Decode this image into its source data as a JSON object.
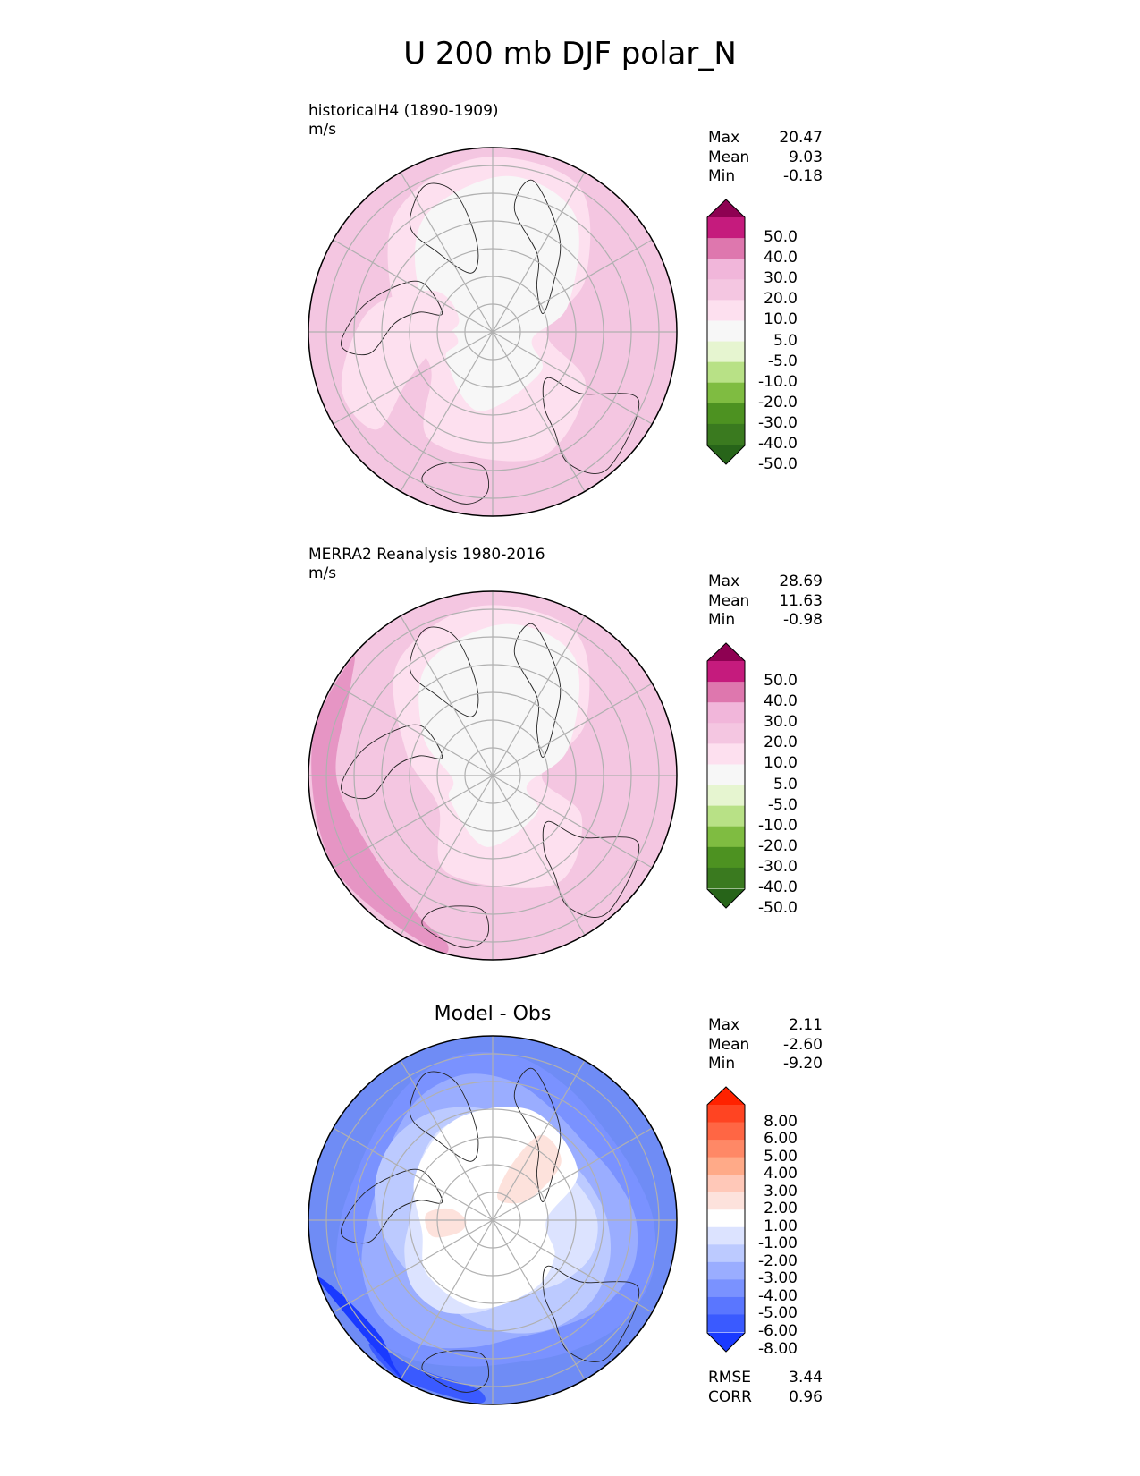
{
  "title": "U 200 mb DJF polar_N",
  "chart_data": [
    {
      "type": "heatmap",
      "name": "model",
      "title": "historicalH4 (1890-1909)",
      "units": "m/s",
      "projection": "north polar stereographic",
      "stats": [
        {
          "label": "Max",
          "value": "20.47"
        },
        {
          "label": "Mean",
          "value": "9.03"
        },
        {
          "label": "Min",
          "value": "-0.18"
        }
      ],
      "colorbar": {
        "extend": "both",
        "ticks": [
          "50.0",
          "40.0",
          "30.0",
          "20.0",
          "10.0",
          "5.0",
          "-5.0",
          "-10.0",
          "-20.0",
          "-30.0",
          "-40.0",
          "-50.0"
        ],
        "colors": [
          "#8e0152",
          "#c51b7d",
          "#de77ae",
          "#f1b6da",
          "#f4c6e1",
          "#fde0ef",
          "#f7f7f7",
          "#e6f5d0",
          "#b8e186",
          "#7fbc41",
          "#4d9221",
          "#3a7a1f",
          "#276419"
        ]
      },
      "background": "#f4c6e1"
    },
    {
      "type": "heatmap",
      "name": "obs",
      "title": "MERRA2 Reanalysis 1980-2016",
      "units": "m/s",
      "projection": "north polar stereographic",
      "stats": [
        {
          "label": "Max",
          "value": "28.69"
        },
        {
          "label": "Mean",
          "value": "11.63"
        },
        {
          "label": "Min",
          "value": "-0.98"
        }
      ],
      "colorbar": {
        "extend": "both",
        "ticks": [
          "50.0",
          "40.0",
          "30.0",
          "20.0",
          "10.0",
          "5.0",
          "-5.0",
          "-10.0",
          "-20.0",
          "-30.0",
          "-40.0",
          "-50.0"
        ],
        "colors": [
          "#8e0152",
          "#c51b7d",
          "#de77ae",
          "#f1b6da",
          "#f4c6e1",
          "#fde0ef",
          "#f7f7f7",
          "#e6f5d0",
          "#b8e186",
          "#7fbc41",
          "#4d9221",
          "#3a7a1f",
          "#276419"
        ]
      },
      "background": "#f4c6e1"
    },
    {
      "type": "heatmap",
      "name": "diff",
      "title": "Model - Obs",
      "units": "",
      "projection": "north polar stereographic",
      "stats": [
        {
          "label": "Max",
          "value": "2.11"
        },
        {
          "label": "Mean",
          "value": "-2.60"
        },
        {
          "label": "Min",
          "value": "-9.20"
        }
      ],
      "metrics": [
        {
          "label": "RMSE",
          "value": "3.44"
        },
        {
          "label": "CORR",
          "value": "0.96"
        }
      ],
      "colorbar": {
        "extend": "both",
        "ticks": [
          "8.00",
          "6.00",
          "5.00",
          "4.00",
          "3.00",
          "2.00",
          "1.00",
          "-1.00",
          "-2.00",
          "-3.00",
          "-4.00",
          "-5.00",
          "-6.00",
          "-8.00"
        ],
        "colors": [
          "#ff2200",
          "#ff4422",
          "#ff6644",
          "#ff8866",
          "#ffaa88",
          "#ffc8b8",
          "#fde2dc",
          "#ffffff",
          "#dce3ff",
          "#bccaff",
          "#9aadff",
          "#7a92ff",
          "#5a76ff",
          "#3a5aff",
          "#1a3aff"
        ]
      },
      "background": "#6f8cf5"
    }
  ]
}
